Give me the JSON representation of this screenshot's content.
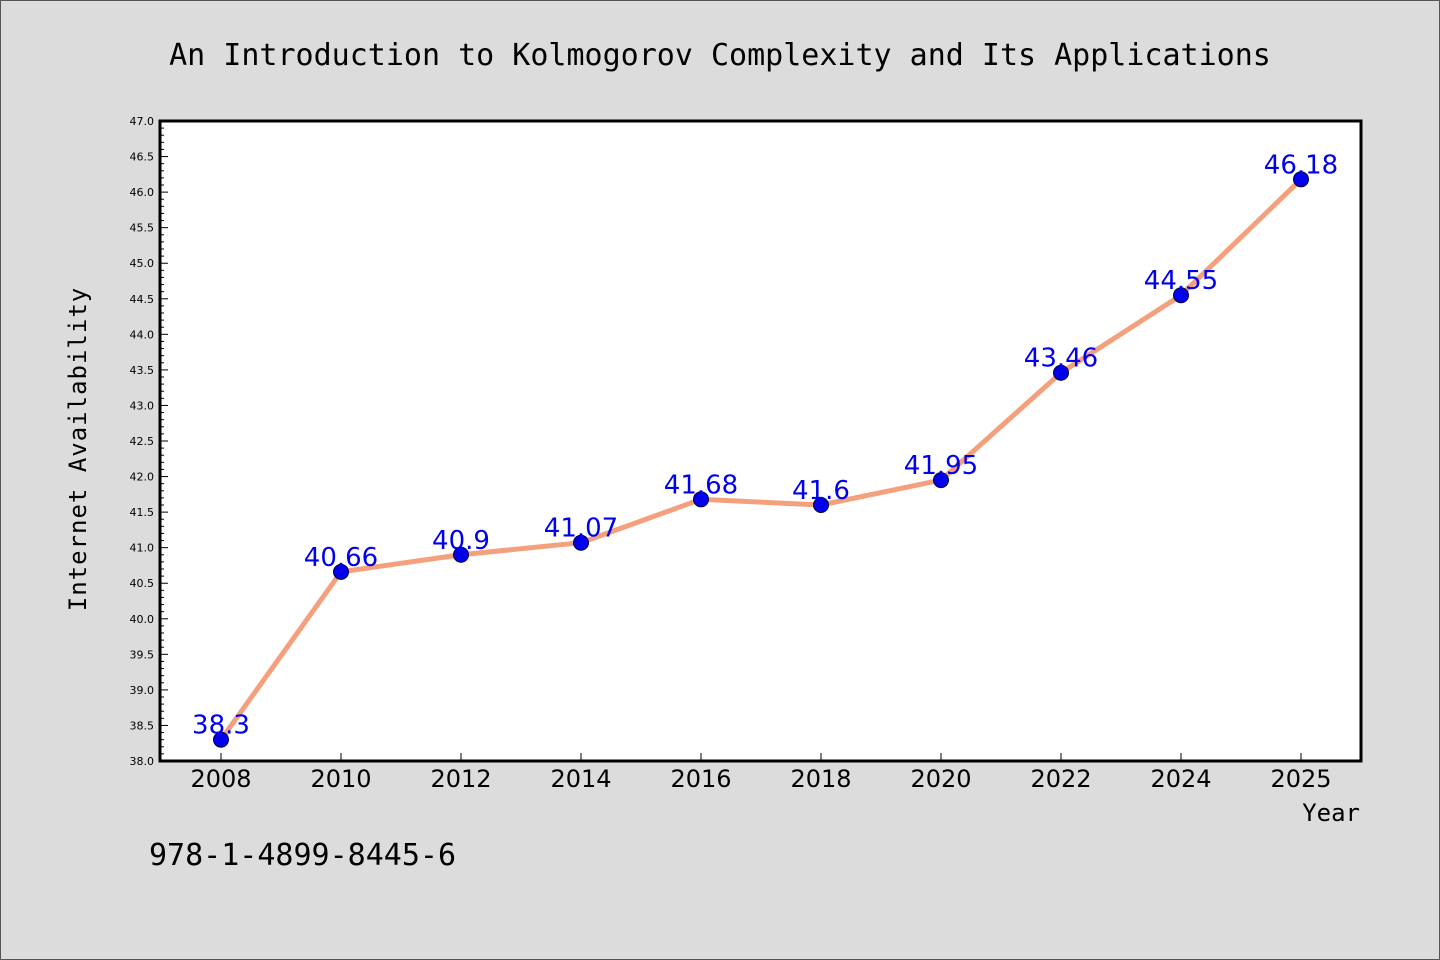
{
  "chart_data": {
    "type": "line",
    "title": "An Introduction to Kolmogorov Complexity and Its Applications",
    "xlabel": "Year",
    "ylabel": "Internet Availability",
    "x": [
      "2008",
      "2010",
      "2012",
      "2014",
      "2016",
      "2018",
      "2020",
      "2022",
      "2024",
      "2025"
    ],
    "series": [
      {
        "values": [
          38.3,
          40.66,
          40.9,
          41.07,
          41.68,
          41.6,
          41.95,
          43.46,
          44.55,
          46.18
        ],
        "line_color": "#f4a07c",
        "marker_color": "#0000ee"
      }
    ],
    "data_labels": [
      "38.3",
      "40.66",
      "40.9",
      "41.07",
      "41.68",
      "41.6",
      "41.95",
      "43.46",
      "44.55",
      "46.18"
    ],
    "data_label_color": "#0000ee",
    "ylim": [
      38.0,
      47.0
    ],
    "yticks": [
      "38.0",
      "38.5",
      "39.0",
      "39.5",
      "40.0",
      "40.5",
      "41.0",
      "41.5",
      "42.0",
      "42.5",
      "43.0",
      "43.5",
      "44.0",
      "44.5",
      "45.0",
      "45.5",
      "46.0",
      "46.5",
      "47.0"
    ],
    "grid": false,
    "legend": "none"
  },
  "annotation": {
    "isbn": "978-1-4899-8445-6"
  }
}
